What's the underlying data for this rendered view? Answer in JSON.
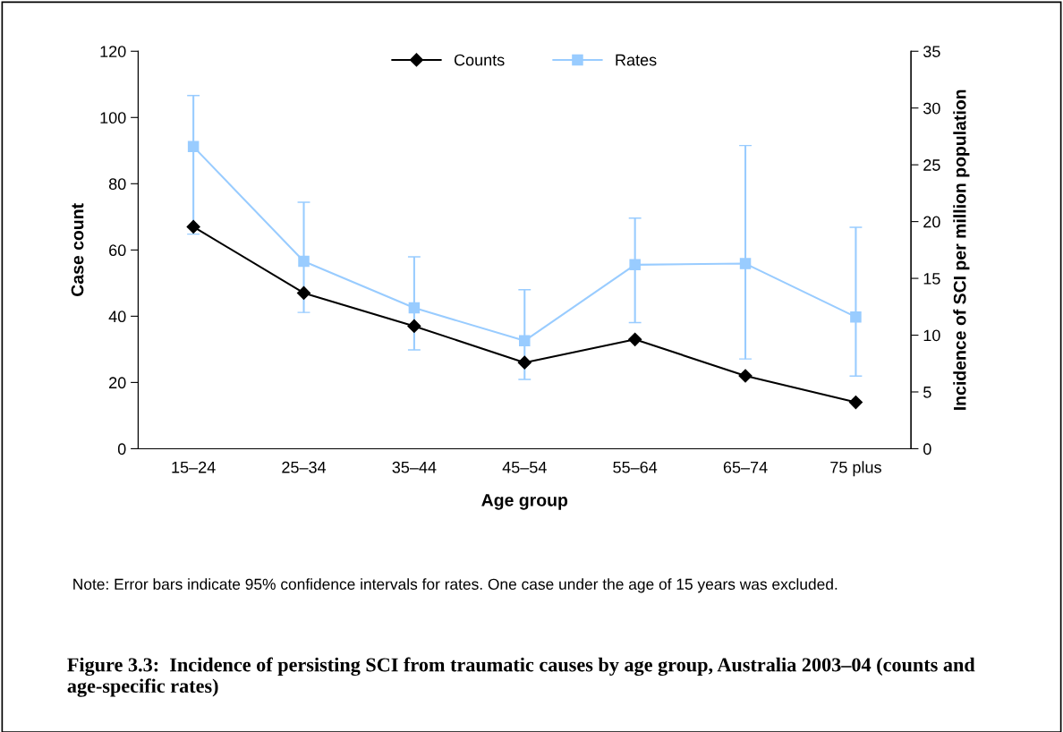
{
  "chart_data": {
    "type": "line",
    "title": "Figure 3.3:  Incidence of persisting SCI from traumatic causes by age group, Australia 2003–04 (counts and age-specific rates)",
    "xlabel": "Age group",
    "ylabel": "Case count",
    "y2label": "Incidence of SCI per million population",
    "annotations": [
      "Note: Error bars indicate 95% confidence intervals for rates. One case under the age of 15 years was excluded."
    ],
    "categories": [
      "15–24",
      "25–34",
      "35–44",
      "45–54",
      "55–64",
      "65–74",
      "75 plus"
    ],
    "series": [
      {
        "name": "Counts",
        "color": "#000000",
        "marker": "diamond",
        "values": [
          67,
          47,
          37,
          26,
          33,
          22,
          14
        ]
      },
      {
        "name": "Rates",
        "color": "#99ccff",
        "marker": "square",
        "axis": "y2",
        "values": [
          26.6,
          16.5,
          12.4,
          9.5,
          16.2,
          16.3,
          11.6
        ],
        "errors": [
          [
            18.9,
            31.1
          ],
          [
            12.0,
            21.7
          ],
          [
            8.7,
            16.9
          ],
          [
            6.1,
            14.0
          ],
          [
            11.1,
            20.3
          ],
          [
            7.9,
            26.7
          ],
          [
            6.4,
            19.5
          ]
        ]
      }
    ],
    "ylim": [
      0,
      120
    ],
    "yticks": [
      0,
      20,
      40,
      60,
      80,
      100,
      120
    ],
    "y2lim": [
      0,
      35
    ],
    "y2ticks": [
      0,
      5,
      10,
      15,
      20,
      25,
      30,
      35
    ],
    "grid": false,
    "legend": "top",
    "line_style": "solid"
  }
}
